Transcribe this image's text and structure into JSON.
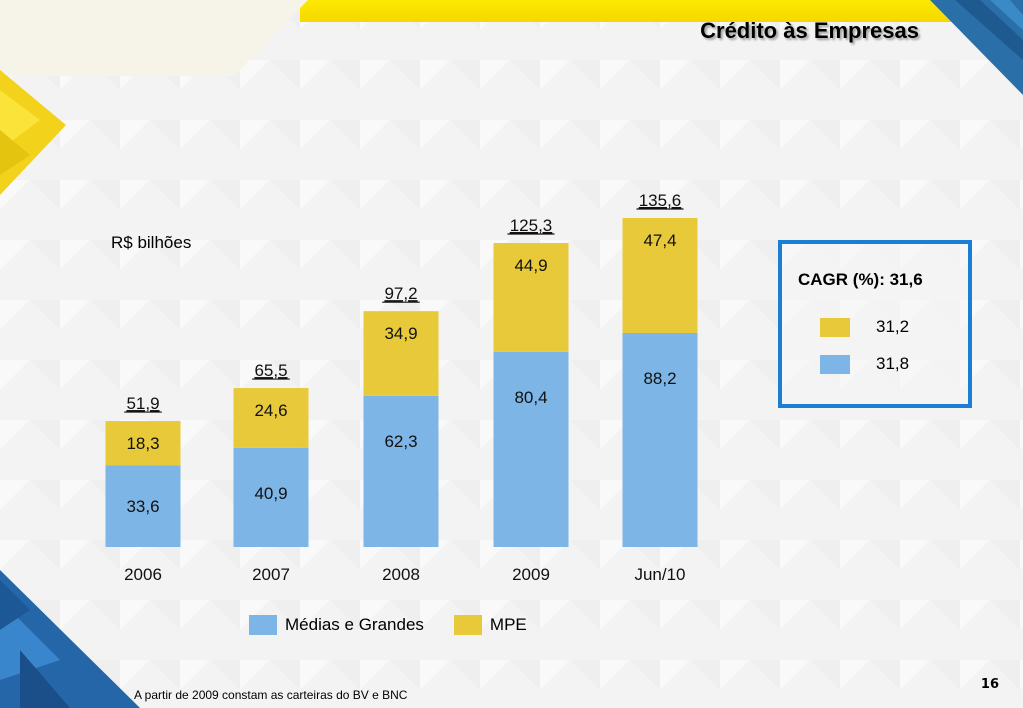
{
  "slide": {
    "title": "Crédito às Empresas",
    "unit_label": "R$ bilhões",
    "footnote": "A partir de 2009 constam as carteiras do BV e BNC",
    "page_number": "16"
  },
  "cagr": {
    "title": "CAGR (%): 31,6",
    "rows": [
      {
        "series": "MPE",
        "value": "31,2",
        "color": "#e8c93a"
      },
      {
        "series": "Médias e Grandes",
        "value": "31,8",
        "color": "#7db5e6"
      }
    ]
  },
  "legend": [
    {
      "label": "Médias e Grandes",
      "color": "#7db5e6"
    },
    {
      "label": "MPE",
      "color": "#e8c93a"
    }
  ],
  "colors": {
    "blue_series": "#7db5e6",
    "yellow_series": "#e8c93a",
    "cagr_border": "#1a7fd4"
  },
  "chart_data": {
    "type": "bar",
    "stacked": true,
    "title": "Crédito às Empresas",
    "ylabel": "R$ bilhões",
    "xlabel": "",
    "categories": [
      "2006",
      "2007",
      "2008",
      "2009",
      "Jun/10"
    ],
    "series": [
      {
        "name": "Médias e Grandes",
        "color": "#7db5e6",
        "values": [
          33.6,
          40.9,
          62.3,
          80.4,
          88.2
        ],
        "labels": [
          "33,6",
          "40,9",
          "62,3",
          "80,4",
          "88,2"
        ]
      },
      {
        "name": "MPE",
        "color": "#e8c93a",
        "values": [
          18.3,
          24.6,
          34.9,
          44.9,
          47.4
        ],
        "labels": [
          "18,3",
          "24,6",
          "34,9",
          "44,9",
          "47,4"
        ]
      }
    ],
    "totals": [
      51.9,
      65.5,
      97.2,
      125.3,
      135.6
    ],
    "total_labels": [
      "51,9",
      "65,5",
      "97,2",
      "125,3",
      "135,6"
    ],
    "ylim": [
      0,
      135.6
    ],
    "grid": false,
    "legend_position": "bottom"
  }
}
